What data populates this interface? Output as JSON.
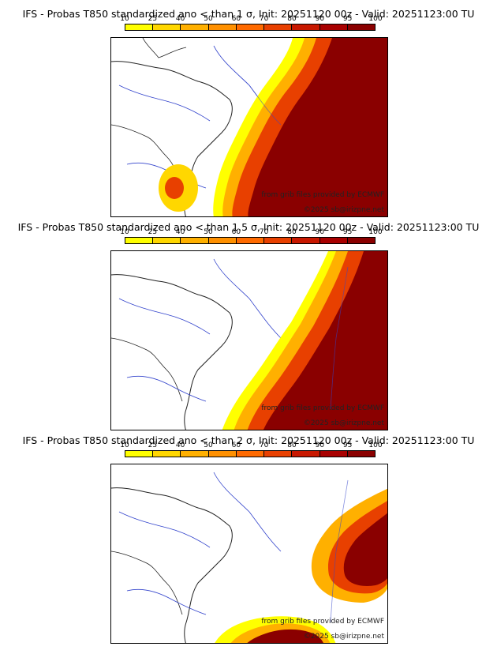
{
  "colorbar": {
    "ticks": [
      "10",
      "25",
      "40",
      "50",
      "60",
      "70",
      "80",
      "90",
      "95",
      "100"
    ],
    "colors": [
      "#ffff00",
      "#ffd700",
      "#ffb000",
      "#ff9000",
      "#ff6a00",
      "#e84000",
      "#c81800",
      "#a80000",
      "#8a0000"
    ]
  },
  "credits": {
    "source": "from grib files provided by ECMWF",
    "copyright": "©2025 sb@irizpne.net"
  },
  "panels": [
    {
      "title": "IFS - Probas T850  standardized ano < than 1 σ, Init: 20251120 00z - Valid: 20251123:00 TU"
    },
    {
      "title": "IFS - Probas T850  standardized ano < than 1.5 σ, Init: 20251120 00z - Valid: 20251123:00 TU"
    },
    {
      "title": "IFS - Probas T850  standardized ano < than 2 σ, Init: 20251120 00z - Valid: 20251123:00 TU"
    }
  ]
}
